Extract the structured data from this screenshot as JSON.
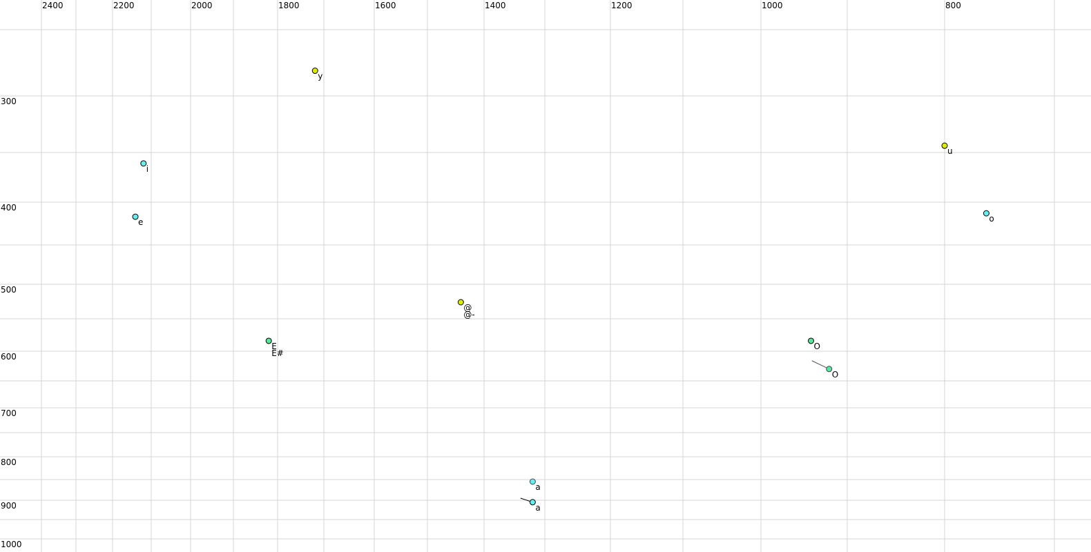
{
  "chart_data": {
    "type": "scatter",
    "title": "",
    "xlabel": "",
    "ylabel": "",
    "x_axis": {
      "reversed": true,
      "range": [
        2400,
        700
      ],
      "tick_labels": [
        2400,
        2200,
        2000,
        1800,
        1600,
        1400,
        1200,
        1000,
        800
      ],
      "grid": [
        2400,
        2300,
        2200,
        2100,
        2000,
        1900,
        1800,
        1700,
        1600,
        1500,
        1400,
        1300,
        1200,
        1100,
        1000,
        900,
        800,
        700
      ],
      "position": "top"
    },
    "y_axis": {
      "range": [
        250,
        1000
      ],
      "tick_labels": [
        300,
        400,
        500,
        600,
        700,
        800,
        900,
        1000
      ],
      "grid": [
        250,
        300,
        350,
        400,
        450,
        500,
        550,
        600,
        650,
        700,
        750,
        800,
        850,
        900,
        950,
        1000
      ],
      "position": "left"
    },
    "grid": true,
    "colors": {
      "yellow": "#dcec00",
      "cyan": "#66eeee",
      "green": "#55e89a",
      "label": "#000000",
      "label_secondary": "#6a6a80"
    },
    "points": [
      {
        "labels": [
          "y"
        ],
        "x": 1719,
        "y": 281,
        "color": "yellow"
      },
      {
        "labels": [
          "i"
        ],
        "x": 2120,
        "y": 361,
        "color": "cyan"
      },
      {
        "labels": [
          "e"
        ],
        "x": 2141,
        "y": 417,
        "color": "cyan"
      },
      {
        "labels": [
          "E",
          "E#"
        ],
        "x": 1820,
        "y": 584,
        "color": "green"
      },
      {
        "labels": [
          "@",
          "@-"
        ],
        "x": 1441,
        "y": 526,
        "color": "yellow"
      },
      {
        "labels": [
          "a"
        ],
        "x": 1320,
        "y": 855,
        "color": "cyan",
        "secondary": true
      },
      {
        "labels": [
          "a"
        ],
        "x": 1320,
        "y": 905,
        "color": "cyan",
        "trail": [
          1340,
          895
        ]
      },
      {
        "labels": [
          "O"
        ],
        "x": 942,
        "y": 584,
        "color": "green"
      },
      {
        "labels": [
          "O"
        ],
        "x": 921,
        "y": 630,
        "color": "green",
        "secondary": true,
        "trail": [
          941,
          616
        ]
      },
      {
        "labels": [
          "u"
        ],
        "x": 800,
        "y": 344,
        "color": "yellow"
      },
      {
        "labels": [
          "o"
        ],
        "x": 762,
        "y": 413,
        "color": "cyan"
      }
    ]
  }
}
